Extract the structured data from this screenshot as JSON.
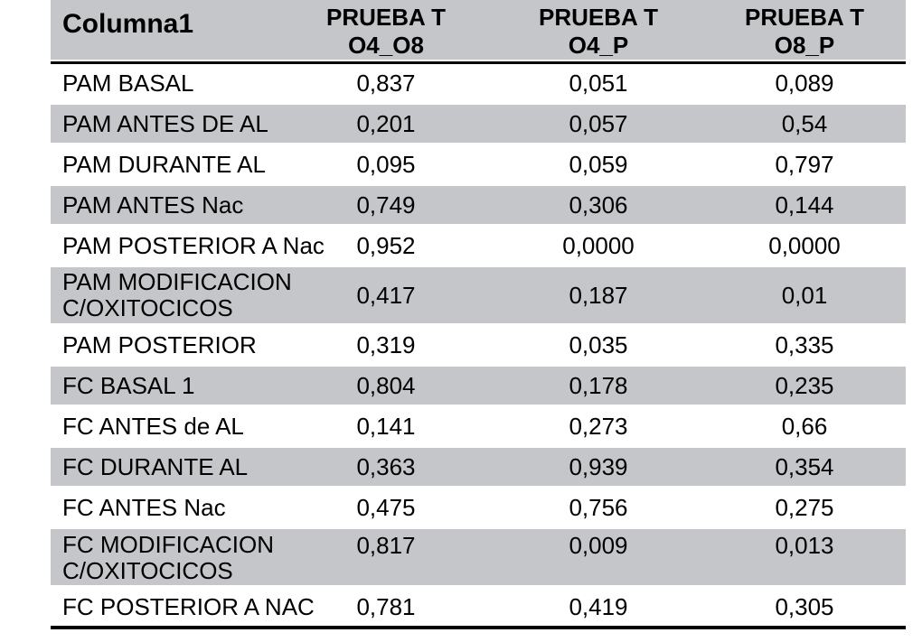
{
  "chart_data": {
    "type": "table",
    "columns": [
      "Columna1",
      "PRUEBA T\nO4_O8",
      "PRUEBA T\nO4_P",
      "PRUEBA T\nO8_P"
    ],
    "rows": [
      {
        "label": "PAM BASAL",
        "values": [
          "0,837",
          "0,051",
          "0,089"
        ],
        "striped": false
      },
      {
        "label": "PAM ANTES DE AL",
        "values": [
          "0,201",
          "0,057",
          "0,54"
        ],
        "striped": true
      },
      {
        "label": "PAM DURANTE AL",
        "values": [
          "0,095",
          "0,059",
          "0,797"
        ],
        "striped": false
      },
      {
        "label": "PAM ANTES Nac",
        "values": [
          "0,749",
          "0,306",
          "0,144"
        ],
        "striped": true
      },
      {
        "label": "PAM POSTERIOR A Nac",
        "values": [
          "0,952",
          "0,0000",
          "0,0000"
        ],
        "striped": false
      },
      {
        "label": "PAM MODIFICACION\nC/OXITOCICOS",
        "values": [
          "0,417",
          "0,187",
          "0,01"
        ],
        "striped": true
      },
      {
        "label": "PAM POSTERIOR",
        "values": [
          "0,319",
          "0,035",
          "0,335"
        ],
        "striped": false
      },
      {
        "label": "FC BASAL 1",
        "values": [
          "0,804",
          "0,178",
          "0,235"
        ],
        "striped": true
      },
      {
        "label": "FC ANTES de AL",
        "values": [
          "0,141",
          "0,273",
          "0,66"
        ],
        "striped": false
      },
      {
        "label": "FC DURANTE AL",
        "values": [
          "0,363",
          "0,939",
          "0,354"
        ],
        "striped": true
      },
      {
        "label": "FC ANTES Nac",
        "values": [
          "0,475",
          "0,756",
          "0,275"
        ],
        "striped": false
      },
      {
        "label": "FC MODIFICACION\nC/OXITOCICOS",
        "values": [
          "0,817",
          "0,009",
          "0,013"
        ],
        "striped": true,
        "values_valign": "top"
      },
      {
        "label": "FC POSTERIOR A NAC",
        "values": [
          "0,781",
          "0,419",
          "0,305"
        ],
        "striped": false
      }
    ],
    "colors": {
      "stripe": "#c5c6ca",
      "rule": "#000000",
      "text": "#000000",
      "background": "#ffffff"
    },
    "layout_hints": {
      "banding": "alternating white/gray rows",
      "header_rule": "thick black line under header row",
      "bottom_rule": "thick black line under last row",
      "decimal_separator": "comma"
    }
  }
}
